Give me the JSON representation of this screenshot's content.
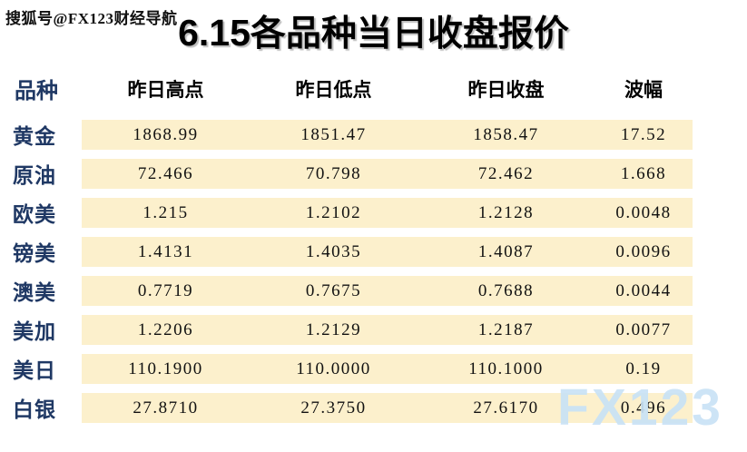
{
  "watermark_top": "搜狐号@FX123财经导航",
  "watermark_bottom": "FX123",
  "title": {
    "prefix": "6.15",
    "text": "各品种当日收盘报价"
  },
  "table": {
    "headers": [
      "品种",
      "昨日高点",
      "昨日低点",
      "昨日收盘",
      "波幅"
    ],
    "rows": [
      {
        "name": "黄金",
        "high": "1868.99",
        "low": "1851.47",
        "close": "1858.47",
        "range": "17.52"
      },
      {
        "name": "原油",
        "high": "72.466",
        "low": "70.798",
        "close": "72.462",
        "range": "1.668"
      },
      {
        "name": "欧美",
        "high": "1.215",
        "low": "1.2102",
        "close": "1.2128",
        "range": "0.0048"
      },
      {
        "name": "镑美",
        "high": "1.4131",
        "low": "1.4035",
        "close": "1.4087",
        "range": "0.0096"
      },
      {
        "name": "澳美",
        "high": "0.7719",
        "low": "0.7675",
        "close": "0.7688",
        "range": "0.0044"
      },
      {
        "name": "美加",
        "high": "1.2206",
        "low": "1.2129",
        "close": "1.2187",
        "range": "0.0077"
      },
      {
        "name": "美日",
        "high": "110.1900",
        "low": "110.0000",
        "close": "110.1000",
        "range": "0.19"
      },
      {
        "name": "白银",
        "high": "27.8710",
        "low": "27.3750",
        "close": "27.6170",
        "range": "0.496"
      }
    ]
  },
  "colors": {
    "row_background": "#FCF0CC",
    "label_text": "#1F3864",
    "watermark_blue": "#C9E2F6",
    "body_background": "#FFFFFF"
  },
  "chart_data": {
    "type": "table",
    "title": "6.15各品种当日收盘报价",
    "columns": [
      "品种",
      "昨日高点",
      "昨日低点",
      "昨日收盘",
      "波幅"
    ],
    "rows": [
      [
        "黄金",
        1868.99,
        1851.47,
        1858.47,
        17.52
      ],
      [
        "原油",
        72.466,
        70.798,
        72.462,
        1.668
      ],
      [
        "欧美",
        1.215,
        1.2102,
        1.2128,
        0.0048
      ],
      [
        "镑美",
        1.4131,
        1.4035,
        1.4087,
        0.0096
      ],
      [
        "澳美",
        0.7719,
        0.7675,
        0.7688,
        0.0044
      ],
      [
        "美加",
        1.2206,
        1.2129,
        1.2187,
        0.0077
      ],
      [
        "美日",
        110.19,
        110.0,
        110.1,
        0.19
      ],
      [
        "白银",
        27.871,
        27.375,
        27.617,
        0.496
      ]
    ],
    "annotations": [
      "搜狐号@FX123财经导航",
      "FX123"
    ]
  }
}
